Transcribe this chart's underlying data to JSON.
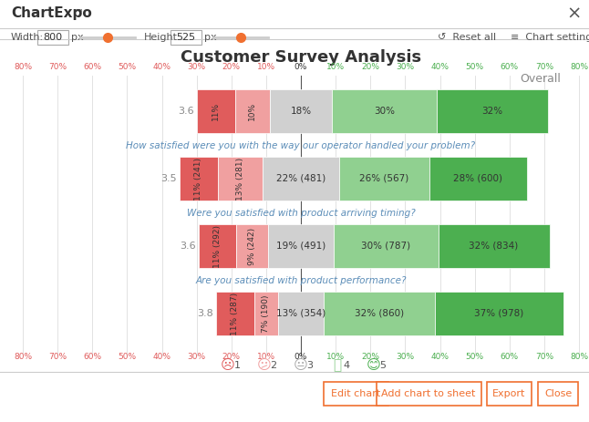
{
  "title": "Customer Survey Analysis",
  "rows": [
    {
      "label": "Overall",
      "score": "3.6",
      "is_question": false,
      "values": [
        11,
        10,
        18,
        30,
        32
      ]
    },
    {
      "label": "How satisfied were you with the way our operator handled your problem?",
      "score": "3.5",
      "is_question": true,
      "values": [
        11,
        13,
        22,
        26,
        28
      ],
      "counts": [
        241,
        281,
        481,
        567,
        600
      ]
    },
    {
      "label": "Were you satisfied with product arriving timing?",
      "score": "3.6",
      "is_question": true,
      "values": [
        11,
        9,
        19,
        30,
        32
      ],
      "counts": [
        292,
        242,
        491,
        787,
        834
      ]
    },
    {
      "label": "Are you satisfied with product performance?",
      "score": "3.8",
      "is_question": true,
      "values": [
        11,
        7,
        13,
        32,
        37
      ],
      "counts": [
        287,
        190,
        354,
        860,
        978
      ]
    }
  ],
  "colors": [
    "#e05c5c",
    "#f0a0a0",
    "#d0d0d0",
    "#90d090",
    "#4caf50"
  ],
  "axis_ticks": [
    -80,
    -70,
    -60,
    -50,
    -40,
    -30,
    -20,
    -10,
    0,
    10,
    20,
    30,
    40,
    50,
    60,
    70,
    80
  ],
  "legend_labels": [
    "1",
    "2",
    "3",
    "4",
    "5"
  ],
  "left_axis_color": "#e05c5c",
  "right_axis_color": "#4caf50",
  "question_color": "#5b8db8",
  "score_color": "#888888",
  "background_color": "#ffffff",
  "ui_bg": "#f5f5f5",
  "title_color": "#333333"
}
